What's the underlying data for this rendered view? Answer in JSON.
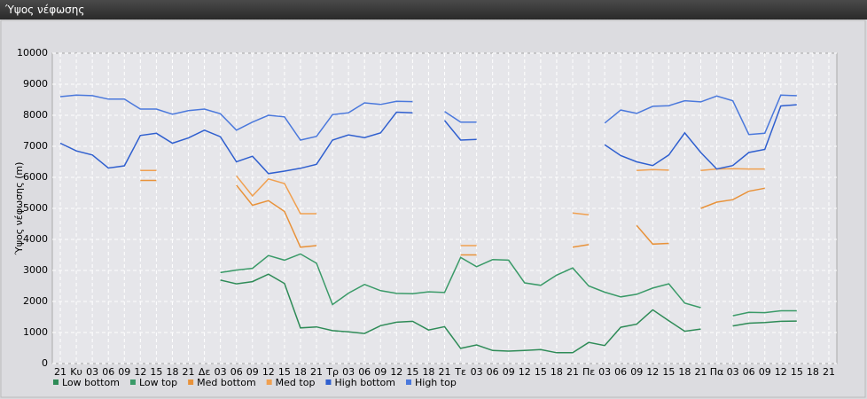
{
  "header": {
    "title": "Ύψος νέφωσης"
  },
  "chart_data": {
    "type": "line",
    "y_label": "Ύψος νέφωσης (m)",
    "categories": [
      "21",
      "Κυ",
      "03",
      "06",
      "09",
      "12",
      "15",
      "18",
      "21",
      "Δε",
      "03",
      "06",
      "09",
      "12",
      "15",
      "18",
      "21",
      "Τρ",
      "03",
      "06",
      "09",
      "12",
      "15",
      "18",
      "21",
      "Τε",
      "03",
      "06",
      "09",
      "12",
      "15",
      "18",
      "21",
      "Πε",
      "03",
      "06",
      "09",
      "12",
      "15",
      "18",
      "21",
      "Πα",
      "03",
      "06",
      "09",
      "12",
      "15",
      "18",
      "21"
    ],
    "ylim": [
      0,
      10000
    ],
    "yticks": [
      0,
      1000,
      2000,
      3000,
      4000,
      5000,
      6000,
      7000,
      8000,
      9000,
      10000
    ],
    "grid": true,
    "legend": "bottom-left",
    "series": [
      {
        "name": "Low bottom",
        "color": "#2e8b57",
        "values": [
          null,
          null,
          null,
          null,
          null,
          null,
          null,
          null,
          null,
          null,
          2690,
          2570,
          2640,
          2880,
          2580,
          1150,
          1180,
          1060,
          1020,
          970,
          1220,
          1330,
          1360,
          1080,
          1190,
          490,
          600,
          420,
          400,
          420,
          450,
          350,
          350,
          680,
          580,
          1170,
          1270,
          1730,
          1380,
          1040,
          1110,
          null,
          1210,
          1300,
          1320,
          1360,
          1370,
          null,
          null
        ]
      },
      {
        "name": "Low top",
        "color": "#3a9a68",
        "values": [
          null,
          null,
          null,
          null,
          null,
          null,
          null,
          null,
          null,
          null,
          2930,
          3010,
          3070,
          3480,
          3330,
          3530,
          3230,
          1900,
          2270,
          2550,
          2350,
          2260,
          2250,
          2310,
          2290,
          3420,
          3120,
          3350,
          3330,
          2600,
          2520,
          2850,
          3080,
          2500,
          2300,
          2150,
          2230,
          2430,
          2570,
          1950,
          1800,
          null,
          1540,
          1650,
          1640,
          1700,
          1700,
          null,
          null
        ]
      },
      {
        "name": "Med bottom",
        "color": "#e8923a",
        "values": [
          null,
          null,
          null,
          null,
          null,
          5900,
          5900,
          null,
          null,
          null,
          null,
          5750,
          5100,
          5250,
          4900,
          3750,
          3800,
          null,
          null,
          null,
          null,
          null,
          null,
          null,
          null,
          3500,
          3500,
          null,
          null,
          null,
          null,
          null,
          3750,
          3830,
          null,
          null,
          4450,
          3850,
          3870,
          null,
          5000,
          5200,
          5280,
          5550,
          5650,
          null,
          null,
          null,
          null
        ]
      },
      {
        "name": "Med top",
        "color": "#f0a050",
        "values": [
          null,
          null,
          null,
          null,
          null,
          6220,
          6220,
          null,
          null,
          null,
          null,
          6050,
          5400,
          5950,
          5800,
          4830,
          4830,
          null,
          null,
          null,
          null,
          null,
          null,
          null,
          null,
          3800,
          3800,
          null,
          null,
          null,
          null,
          null,
          4850,
          4790,
          null,
          null,
          6220,
          6250,
          6230,
          null,
          6220,
          6270,
          6280,
          6270,
          6270,
          null,
          null,
          null,
          null
        ]
      },
      {
        "name": "High bottom",
        "color": "#2f5fcf",
        "values": [
          7100,
          6850,
          6720,
          6300,
          6370,
          7350,
          7420,
          7100,
          7270,
          7520,
          7310,
          6500,
          6680,
          6120,
          6200,
          6290,
          6420,
          7200,
          7370,
          7280,
          7430,
          8100,
          8080,
          null,
          7830,
          7200,
          7220,
          null,
          null,
          null,
          null,
          null,
          null,
          null,
          7050,
          6700,
          6500,
          6380,
          6720,
          7430,
          6800,
          6270,
          6380,
          6800,
          6900,
          8300,
          8340,
          null,
          null
        ]
      },
      {
        "name": "High top",
        "color": "#4a78dc",
        "values": [
          8600,
          8650,
          8630,
          8520,
          8520,
          8200,
          8200,
          8030,
          8150,
          8200,
          8050,
          7520,
          7780,
          8000,
          7950,
          7200,
          7320,
          8020,
          8080,
          8400,
          8350,
          8450,
          8440,
          null,
          8120,
          7780,
          7780,
          null,
          null,
          null,
          null,
          null,
          null,
          null,
          7750,
          8170,
          8060,
          8290,
          8310,
          8470,
          8430,
          8620,
          8470,
          7380,
          7420,
          8650,
          8630,
          null,
          null
        ]
      }
    ]
  }
}
